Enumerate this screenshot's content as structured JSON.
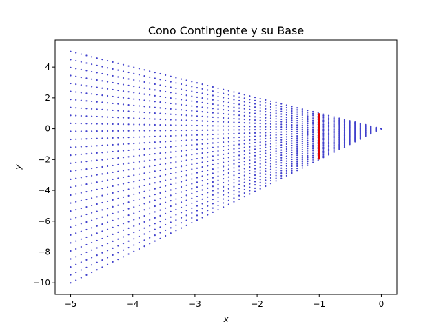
{
  "chart_data": {
    "type": "scatter",
    "title": "Cono Contingente y su Base",
    "xlabel": "x",
    "ylabel": "y",
    "xlim": [
      -5.25,
      0.25
    ],
    "ylim": [
      -10.75,
      5.75
    ],
    "xticks": [
      -5,
      -4,
      -3,
      -2,
      -1,
      0
    ],
    "yticks": [
      -10,
      -8,
      -6,
      -4,
      -2,
      0,
      2,
      4
    ],
    "grid": false,
    "colors": {
      "cone": "#4040cc",
      "base": "#e00000"
    },
    "cone": {
      "apex": [
        0,
        0
      ],
      "x_range": [
        -5,
        0
      ],
      "slope_range": [
        -1,
        2
      ],
      "rays": 30,
      "points_per_ray": 60,
      "marker": "dot"
    },
    "base_segment": {
      "x": -1,
      "y_range": [
        -2,
        1
      ]
    }
  }
}
